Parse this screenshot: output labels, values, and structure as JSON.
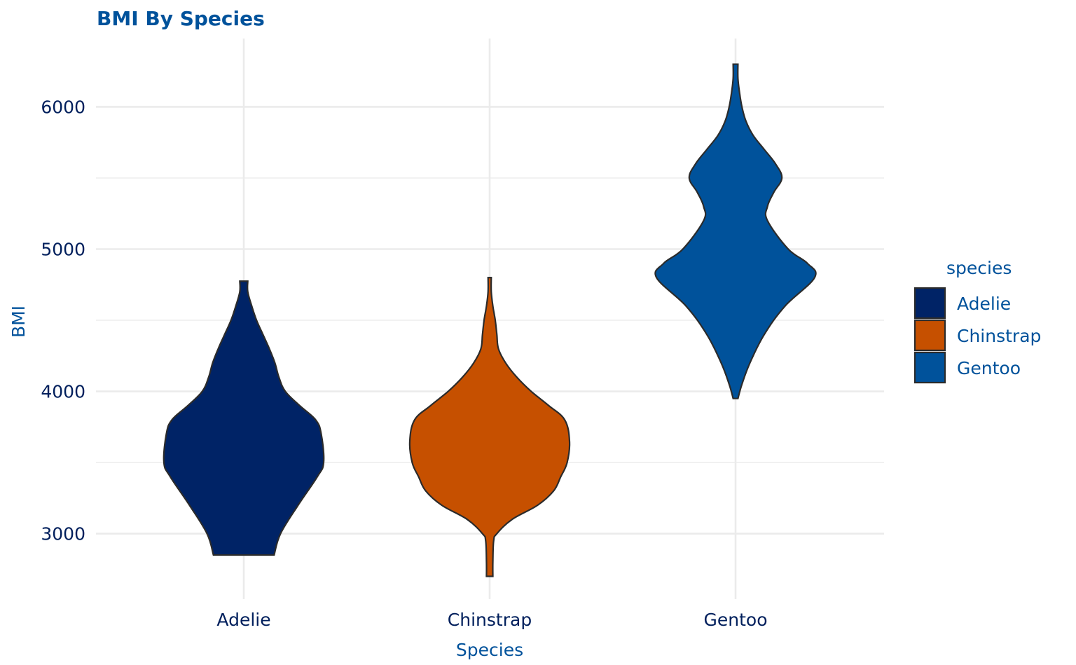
{
  "chart_data": {
    "type": "violin",
    "title": "BMI By Species",
    "xlabel": "Species",
    "ylabel": "BMI",
    "categories": [
      "Adelie",
      "Chinstrap",
      "Gentoo"
    ],
    "ylim": [
      2540,
      6480
    ],
    "yticks": [
      3000,
      4000,
      5000,
      6000
    ],
    "grid": true,
    "legend": {
      "title": "species",
      "position": "right",
      "entries": [
        "Adelie",
        "Chinstrap",
        "Gentoo"
      ]
    },
    "colors": {
      "Adelie": "#002366",
      "Chinstrap": "#c65000",
      "Gentoo": "#00529b"
    },
    "series": [
      {
        "name": "Adelie",
        "min": 2850,
        "max": 4775,
        "density": [
          [
            2850,
            0.38
          ],
          [
            3000,
            0.46
          ],
          [
            3200,
            0.68
          ],
          [
            3400,
            0.92
          ],
          [
            3500,
            1.0
          ],
          [
            3700,
            0.97
          ],
          [
            3800,
            0.9
          ],
          [
            3900,
            0.7
          ],
          [
            4000,
            0.52
          ],
          [
            4100,
            0.44
          ],
          [
            4200,
            0.39
          ],
          [
            4300,
            0.32
          ],
          [
            4400,
            0.24
          ],
          [
            4500,
            0.16
          ],
          [
            4600,
            0.1
          ],
          [
            4700,
            0.05
          ],
          [
            4775,
            0.05
          ]
        ]
      },
      {
        "name": "Chinstrap",
        "min": 2700,
        "max": 4800,
        "density": [
          [
            2700,
            0.04
          ],
          [
            2800,
            0.04
          ],
          [
            2950,
            0.05
          ],
          [
            3000,
            0.09
          ],
          [
            3100,
            0.28
          ],
          [
            3200,
            0.6
          ],
          [
            3300,
            0.8
          ],
          [
            3400,
            0.89
          ],
          [
            3500,
            0.97
          ],
          [
            3650,
            1.0
          ],
          [
            3800,
            0.94
          ],
          [
            3900,
            0.74
          ],
          [
            4000,
            0.52
          ],
          [
            4100,
            0.34
          ],
          [
            4200,
            0.2
          ],
          [
            4300,
            0.11
          ],
          [
            4400,
            0.09
          ],
          [
            4500,
            0.07
          ],
          [
            4600,
            0.04
          ],
          [
            4700,
            0.02
          ],
          [
            4800,
            0.02
          ]
        ]
      },
      {
        "name": "Gentoo",
        "min": 3950,
        "max": 6300,
        "density": [
          [
            3950,
            0.03
          ],
          [
            4050,
            0.08
          ],
          [
            4200,
            0.18
          ],
          [
            4400,
            0.36
          ],
          [
            4600,
            0.62
          ],
          [
            4800,
            0.99
          ],
          [
            4900,
            0.9
          ],
          [
            5000,
            0.66
          ],
          [
            5200,
            0.4
          ],
          [
            5300,
            0.4
          ],
          [
            5400,
            0.48
          ],
          [
            5500,
            0.58
          ],
          [
            5600,
            0.5
          ],
          [
            5700,
            0.36
          ],
          [
            5800,
            0.22
          ],
          [
            5900,
            0.13
          ],
          [
            6000,
            0.08
          ],
          [
            6100,
            0.05
          ],
          [
            6200,
            0.03
          ],
          [
            6300,
            0.03
          ]
        ]
      }
    ]
  }
}
